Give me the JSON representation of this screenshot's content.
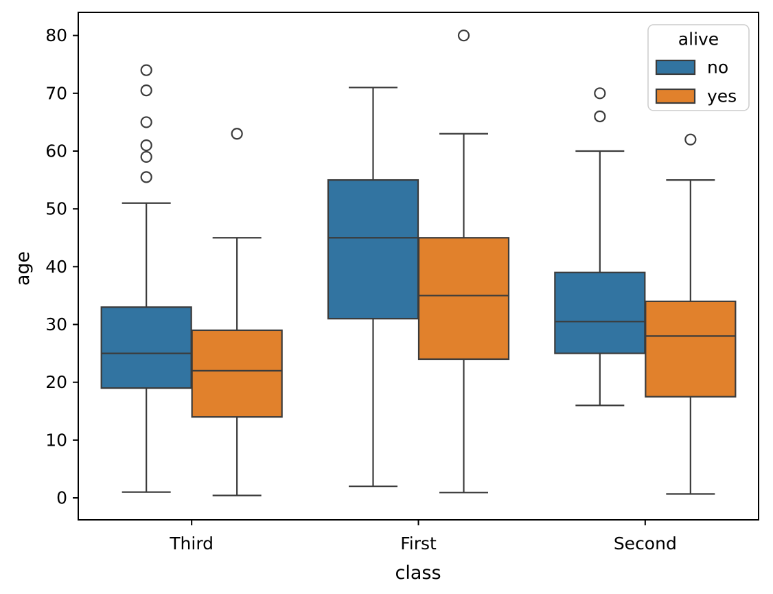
{
  "figure": {
    "background": "#ffffff"
  },
  "chart_data": {
    "type": "boxplot",
    "title": "",
    "xlabel": "class",
    "ylabel": "age",
    "categories": [
      "Third",
      "First",
      "Second"
    ],
    "ylim": [
      -3.8,
      84.0
    ],
    "yticks": [
      0,
      10,
      20,
      30,
      40,
      50,
      60,
      70,
      80
    ],
    "grid": false,
    "legend": {
      "title": "alive",
      "position": "upper right",
      "entries": [
        {
          "label": "no",
          "color": "#3274a1"
        },
        {
          "label": "yes",
          "color": "#e1812c"
        }
      ]
    },
    "series": [
      {
        "name": "no",
        "color": "#3274a1",
        "boxes": [
          {
            "category": "Third",
            "whislo": 1.0,
            "q1": 19.0,
            "med": 25.0,
            "q3": 33.0,
            "whishi": 51.0,
            "fliers": [
              55.5,
              59.0,
              61.0,
              65.0,
              70.5,
              74.0
            ]
          },
          {
            "category": "First",
            "whislo": 2.0,
            "q1": 31.0,
            "med": 45.0,
            "q3": 55.0,
            "whishi": 71.0,
            "fliers": []
          },
          {
            "category": "Second",
            "whislo": 16.0,
            "q1": 25.0,
            "med": 30.5,
            "q3": 39.0,
            "whishi": 60.0,
            "fliers": [
              66.0,
              70.0
            ]
          }
        ]
      },
      {
        "name": "yes",
        "color": "#e1812c",
        "boxes": [
          {
            "category": "Third",
            "whislo": 0.42,
            "q1": 14.0,
            "med": 22.0,
            "q3": 29.0,
            "whishi": 45.0,
            "fliers": [
              63.0
            ]
          },
          {
            "category": "First",
            "whislo": 0.92,
            "q1": 24.0,
            "med": 35.0,
            "q3": 45.0,
            "whishi": 63.0,
            "fliers": [
              80.0
            ]
          },
          {
            "category": "Second",
            "whislo": 0.67,
            "q1": 17.5,
            "med": 28.0,
            "q3": 34.0,
            "whishi": 55.0,
            "fliers": [
              62.0
            ]
          }
        ]
      }
    ],
    "style": {
      "box_edge_color": "#3b3b3b",
      "whisker_color": "#3b3b3b",
      "spine_color": "#000000",
      "tick_label_color": "#000000",
      "legend_border_color": "#cccccc",
      "flier_marker": "open-circle"
    }
  }
}
